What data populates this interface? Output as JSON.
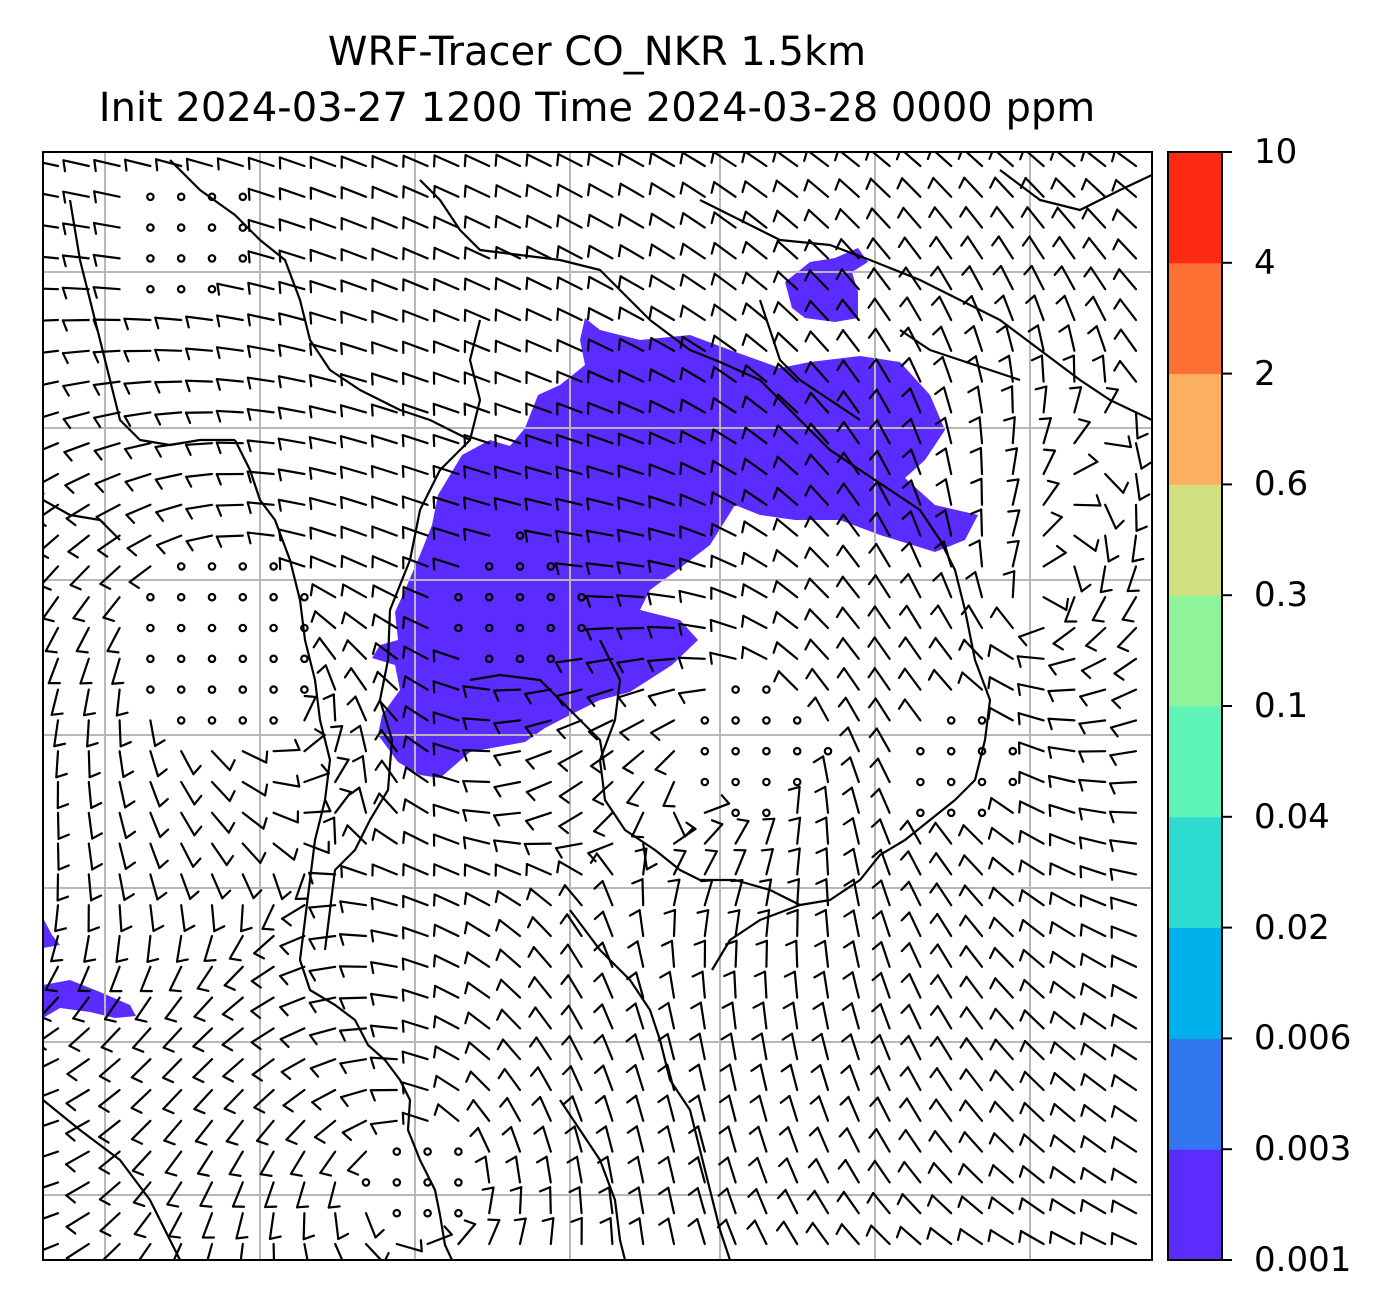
{
  "title": {
    "line1": "WRF-Tracer CO_NKR 1.5km",
    "line2": "Init 2024-03-27 1200 Time 2024-03-28 0000 ppm"
  },
  "colorbar": {
    "levels": [
      "0.001",
      "0.003",
      "0.006",
      "0.02",
      "0.04",
      "0.1",
      "0.3",
      "0.6",
      "2",
      "4",
      "10"
    ],
    "colors": [
      "#5b2bff",
      "#3377f0",
      "#00b0ea",
      "#2ddbd0",
      "#5ff5b8",
      "#8ff39a",
      "#d0e080",
      "#fdb060",
      "#ff7035",
      "#ff2a14"
    ]
  },
  "map": {
    "plume_color": "#5b2bff",
    "barb_color": "#000000",
    "gridline_color": "#b8b8b8"
  }
}
